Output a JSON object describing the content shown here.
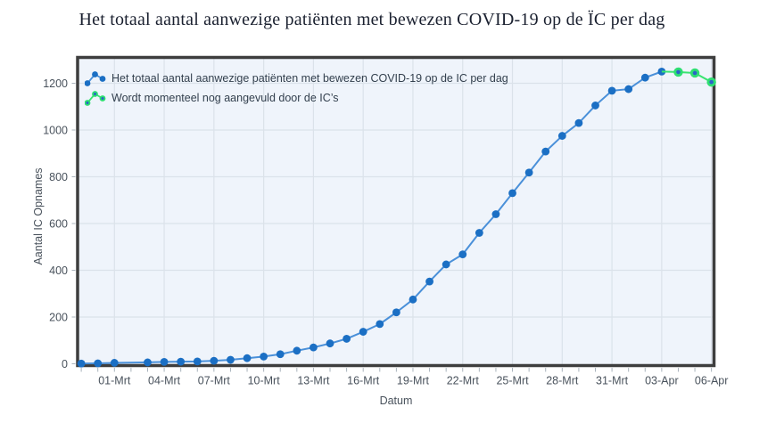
{
  "chart_data": {
    "type": "line",
    "title": "Het totaal aantal aanwezige patiënten met bewezen COVID-19 op de ÏC per dag",
    "xlabel": "Datum",
    "ylabel": "Aantal IC Opnames",
    "ylim": [
      0,
      1300
    ],
    "xlim_days": [
      -2.2,
      36.2
    ],
    "grid": true,
    "legend_position": "top-left-inside",
    "yticks": [
      0,
      200,
      400,
      600,
      800,
      1000,
      1200
    ],
    "xticks": [
      {
        "label": "01-Mrt",
        "d": 0
      },
      {
        "label": "04-Mrt",
        "d": 3
      },
      {
        "label": "07-Mrt",
        "d": 6
      },
      {
        "label": "10-Mrt",
        "d": 9
      },
      {
        "label": "13-Mrt",
        "d": 12
      },
      {
        "label": "16-Mrt",
        "d": 15
      },
      {
        "label": "19-Mrt",
        "d": 18
      },
      {
        "label": "22-Mrt",
        "d": 21
      },
      {
        "label": "25-Mrt",
        "d": 24
      },
      {
        "label": "28-Mrt",
        "d": 27
      },
      {
        "label": "31-Mrt",
        "d": 30
      },
      {
        "label": "03-Apr",
        "d": 33
      },
      {
        "label": "06-Apr",
        "d": 36
      }
    ],
    "minor_ticks_days": {
      "from": -2,
      "to": 36
    },
    "colors": {
      "plot_bg": "#eff4fb",
      "grid": "#dbe2ea",
      "axis_border": "#3e3e3e",
      "minor_tick": "#aab4bd",
      "tick_label": "#49525c",
      "title_text": "#1b2130"
    },
    "series": [
      {
        "id": "total",
        "name": "Het totaal aantal aanwezige patiënten met bewezen COVID-19 op de IC per dag",
        "line_color": "#4a90d9",
        "marker_color": "#1b6fc4",
        "marker_style": "dot",
        "points": [
          {
            "d": -2,
            "date": "28-Feb",
            "value": 1
          },
          {
            "d": -1,
            "date": "29-Feb",
            "value": 2
          },
          {
            "d": 0,
            "date": "01-Mrt",
            "value": 4
          },
          {
            "d": 2,
            "date": "03-Mrt",
            "value": 6
          },
          {
            "d": 3,
            "date": "04-Mrt",
            "value": 8
          },
          {
            "d": 4,
            "date": "05-Mrt",
            "value": 9
          },
          {
            "d": 5,
            "date": "06-Mrt",
            "value": 10
          },
          {
            "d": 6,
            "date": "07-Mrt",
            "value": 13
          },
          {
            "d": 7,
            "date": "08-Mrt",
            "value": 17
          },
          {
            "d": 8,
            "date": "09-Mrt",
            "value": 24
          },
          {
            "d": 9,
            "date": "10-Mrt",
            "value": 31
          },
          {
            "d": 10,
            "date": "11-Mrt",
            "value": 41
          },
          {
            "d": 11,
            "date": "12-Mrt",
            "value": 56
          },
          {
            "d": 12,
            "date": "13-Mrt",
            "value": 70
          },
          {
            "d": 13,
            "date": "14-Mrt",
            "value": 87
          },
          {
            "d": 14,
            "date": "15-Mrt",
            "value": 107
          },
          {
            "d": 15,
            "date": "16-Mrt",
            "value": 137
          },
          {
            "d": 16,
            "date": "17-Mrt",
            "value": 170
          },
          {
            "d": 17,
            "date": "18-Mrt",
            "value": 220
          },
          {
            "d": 18,
            "date": "19-Mrt",
            "value": 275
          },
          {
            "d": 19,
            "date": "20-Mrt",
            "value": 352
          },
          {
            "d": 20,
            "date": "21-Mrt",
            "value": 425
          },
          {
            "d": 21,
            "date": "22-Mrt",
            "value": 468
          },
          {
            "d": 22,
            "date": "23-Mrt",
            "value": 560
          },
          {
            "d": 23,
            "date": "24-Mrt",
            "value": 640
          },
          {
            "d": 24,
            "date": "25-Mrt",
            "value": 730
          },
          {
            "d": 25,
            "date": "26-Mrt",
            "value": 818
          },
          {
            "d": 26,
            "date": "27-Mrt",
            "value": 908
          },
          {
            "d": 27,
            "date": "28-Mrt",
            "value": 975
          },
          {
            "d": 28,
            "date": "29-Mrt",
            "value": 1030
          },
          {
            "d": 29,
            "date": "30-Mrt",
            "value": 1105
          },
          {
            "d": 30,
            "date": "31-Mrt",
            "value": 1168
          },
          {
            "d": 31,
            "date": "01-Apr",
            "value": 1175
          },
          {
            "d": 32,
            "date": "02-Apr",
            "value": 1224
          },
          {
            "d": 33,
            "date": "03-Apr",
            "value": 1250
          }
        ]
      },
      {
        "id": "provisional",
        "name": "Wordt momenteel nog aangevuld door de IC’s",
        "line_color": "#3ae471",
        "marker_color": "#2edf72",
        "marker_inner_color": "#2a63c8",
        "marker_style": "ring-dot",
        "points": [
          {
            "d": 33,
            "date": "03-Apr",
            "value": 1250,
            "marker": false
          },
          {
            "d": 34,
            "date": "04-Apr",
            "value": 1248
          },
          {
            "d": 35,
            "date": "05-Apr",
            "value": 1244
          },
          {
            "d": 36,
            "date": "06-Apr",
            "value": 1205
          }
        ]
      }
    ]
  }
}
